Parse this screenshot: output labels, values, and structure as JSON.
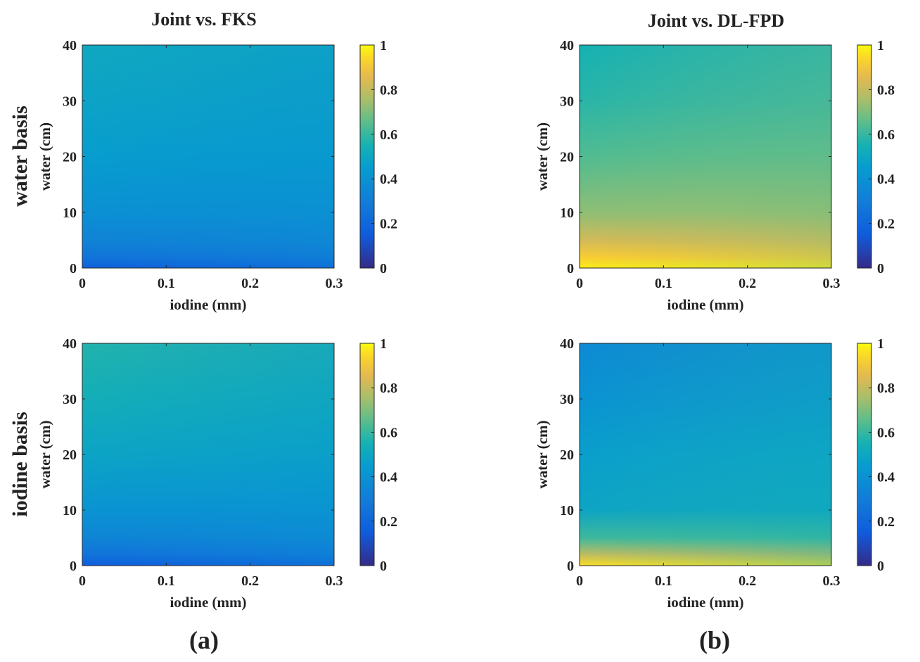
{
  "figure": {
    "columns": [
      {
        "title": "Joint vs. FKS",
        "panel_label": "(a)"
      },
      {
        "title": "Joint vs. DL-FPD",
        "panel_label": "(b)"
      }
    ],
    "rows": [
      {
        "label": "water basis"
      },
      {
        "label": "iodine basis"
      }
    ]
  },
  "chart_data": [
    {
      "type": "heatmap",
      "title": "Joint vs. FKS",
      "row": "water basis",
      "xlabel": "iodine (mm)",
      "ylabel": "water (cm)",
      "xlim": [
        0,
        0.3
      ],
      "ylim": [
        0,
        40
      ],
      "xticks": [
        "0",
        "0.1",
        "0.2",
        "0.3"
      ],
      "yticks": [
        "0",
        "10",
        "20",
        "30",
        "40"
      ],
      "colorbar": {
        "range": [
          0,
          1
        ],
        "ticks": [
          "0",
          "0.2",
          "0.4",
          "0.6",
          "0.8",
          "1"
        ],
        "colormap": "parula"
      },
      "x": [
        0,
        0.3
      ],
      "y": [
        0,
        2,
        5,
        10,
        20,
        30,
        40
      ],
      "z": [
        [
          0.16,
          0.2
        ],
        [
          0.25,
          0.29
        ],
        [
          0.32,
          0.36
        ],
        [
          0.38,
          0.42
        ],
        [
          0.44,
          0.49
        ],
        [
          0.48,
          0.5
        ],
        [
          0.5,
          0.52
        ]
      ]
    },
    {
      "type": "heatmap",
      "title": "Joint vs. DL-FPD",
      "row": "water basis",
      "xlabel": "iodine (mm)",
      "ylabel": "water (cm)",
      "xlim": [
        0,
        0.3
      ],
      "ylim": [
        0,
        40
      ],
      "xticks": [
        "0",
        "0.1",
        "0.2",
        "0.3"
      ],
      "yticks": [
        "0",
        "10",
        "20",
        "30",
        "40"
      ],
      "colorbar": {
        "range": [
          0,
          1
        ],
        "ticks": [
          "0",
          "0.2",
          "0.4",
          "0.6",
          "0.8",
          "1"
        ],
        "colormap": "parula"
      },
      "x": [
        0,
        0.3
      ],
      "y": [
        0,
        2,
        5,
        10,
        20,
        30,
        40
      ],
      "z": [
        [
          0.98,
          0.97
        ],
        [
          0.93,
          0.88
        ],
        [
          0.84,
          0.78
        ],
        [
          0.74,
          0.66
        ],
        [
          0.66,
          0.57
        ],
        [
          0.6,
          0.52
        ],
        [
          0.57,
          0.49
        ]
      ]
    },
    {
      "type": "heatmap",
      "title": "",
      "row": "iodine basis",
      "xlabel": "iodine (mm)",
      "ylabel": "water (cm)",
      "xlim": [
        0,
        0.3
      ],
      "ylim": [
        0,
        40
      ],
      "xticks": [
        "0",
        "0.1",
        "0.2",
        "0.3"
      ],
      "yticks": [
        "0",
        "10",
        "20",
        "30",
        "40"
      ],
      "colorbar": {
        "range": [
          0,
          1
        ],
        "ticks": [
          "0",
          "0.2",
          "0.4",
          "0.6",
          "0.8",
          "1"
        ],
        "colormap": "parula"
      },
      "x": [
        0,
        0.3
      ],
      "y": [
        0,
        2,
        5,
        10,
        20,
        30,
        40
      ],
      "z": [
        [
          0.14,
          0.18
        ],
        [
          0.24,
          0.29
        ],
        [
          0.32,
          0.38
        ],
        [
          0.39,
          0.46
        ],
        [
          0.48,
          0.51
        ],
        [
          0.53,
          0.55
        ],
        [
          0.56,
          0.59
        ]
      ]
    },
    {
      "type": "heatmap",
      "title": "",
      "row": "iodine basis",
      "xlabel": "iodine (mm)",
      "ylabel": "water (cm)",
      "xlim": [
        0,
        0.3
      ],
      "ylim": [
        0,
        40
      ],
      "xticks": [
        "0",
        "0.1",
        "0.2",
        "0.3"
      ],
      "yticks": [
        "0",
        "10",
        "20",
        "30",
        "40"
      ],
      "colorbar": {
        "range": [
          0,
          1
        ],
        "ticks": [
          "0",
          "0.2",
          "0.4",
          "0.6",
          "0.8",
          "1"
        ],
        "colormap": "parula"
      },
      "x": [
        0,
        0.3
      ],
      "y": [
        0,
        2,
        5,
        10,
        20,
        30,
        40
      ],
      "z": [
        [
          0.96,
          0.94
        ],
        [
          0.8,
          0.77
        ],
        [
          0.62,
          0.58
        ],
        [
          0.5,
          0.46
        ],
        [
          0.47,
          0.44
        ],
        [
          0.42,
          0.36
        ],
        [
          0.38,
          0.31
        ]
      ]
    }
  ]
}
